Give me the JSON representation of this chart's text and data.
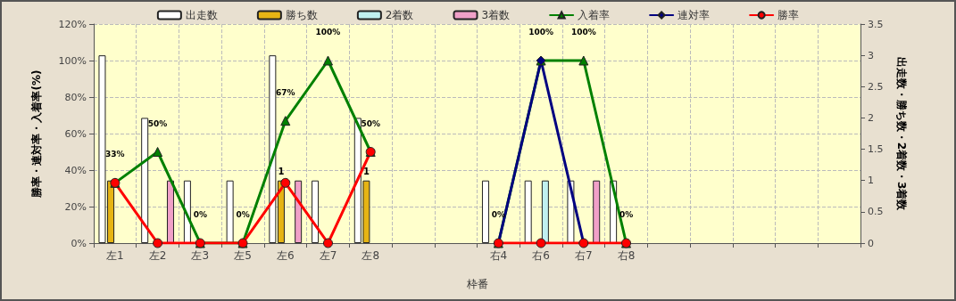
{
  "chart_data": {
    "type": "bar",
    "xlabel": "枠番",
    "ylabel": "勝率・連対率・入着率(%)",
    "y2label": "出走数・勝ち数・2着数・3着数",
    "categories": [
      "左1",
      "左2",
      "左3",
      "左5",
      "左6",
      "左7",
      "左8",
      null,
      null,
      "右4",
      "右6",
      "右7",
      "右8",
      null,
      null,
      null,
      null,
      null
    ],
    "series": [
      {
        "name": "出走数",
        "axis": "y2",
        "color": "#ffffff",
        "values": [
          3,
          2,
          1,
          1,
          3,
          1,
          2,
          null,
          null,
          1,
          1,
          1,
          1,
          null,
          null,
          null,
          null,
          null
        ]
      },
      {
        "name": "勝ち数",
        "axis": "y2",
        "color": "#e6b414",
        "values": [
          1,
          null,
          null,
          null,
          1,
          null,
          1,
          null,
          null,
          null,
          null,
          null,
          null,
          null,
          null,
          null,
          null,
          null
        ],
        "value_labels": [
          null,
          null,
          null,
          null,
          "1",
          null,
          "1",
          null,
          null,
          null,
          null,
          null,
          null,
          null,
          null,
          null,
          null,
          null
        ]
      },
      {
        "name": "2着数",
        "axis": "y2",
        "color": "#c0f0f0",
        "values": [
          null,
          null,
          null,
          null,
          null,
          null,
          null,
          null,
          null,
          null,
          1,
          null,
          null,
          null,
          null,
          null,
          null,
          null
        ]
      },
      {
        "name": "3着数",
        "axis": "y2",
        "color": "#f0a0c8",
        "values": [
          null,
          1,
          null,
          null,
          1,
          null,
          null,
          null,
          null,
          null,
          null,
          1,
          null,
          null,
          null,
          null,
          null,
          null
        ]
      },
      {
        "name": "入着率",
        "type": "line",
        "marker": "triangle",
        "color": "#008000",
        "values": [
          33,
          50,
          0,
          0,
          67,
          100,
          50,
          null,
          null,
          0,
          100,
          100,
          0,
          null,
          null,
          null,
          null,
          null
        ],
        "value_labels": [
          "33%",
          "50%",
          "0%",
          "0%",
          "67%",
          "100%",
          "50%",
          null,
          null,
          "0%",
          "100%",
          "100%",
          "0%",
          null,
          null,
          null,
          null,
          null
        ]
      },
      {
        "name": "連対率",
        "type": "line",
        "marker": "diamond",
        "color": "#000080",
        "values": [
          null,
          null,
          null,
          null,
          null,
          null,
          null,
          null,
          null,
          0,
          100,
          0,
          null,
          null,
          null,
          null,
          null,
          null
        ]
      },
      {
        "name": "勝率",
        "type": "line",
        "marker": "circle",
        "color": "#ff0000",
        "values": [
          33,
          0,
          0,
          0,
          33,
          0,
          50,
          null,
          null,
          0,
          0,
          0,
          0,
          null,
          null,
          null,
          null,
          null
        ]
      }
    ],
    "ylim": [
      0,
      120
    ],
    "yticks": [
      {
        "value": 0,
        "label": "0%"
      },
      {
        "value": 20,
        "label": "20%"
      },
      {
        "value": 40,
        "label": "40%"
      },
      {
        "value": 60,
        "label": "60%"
      },
      {
        "value": 80,
        "label": "80%"
      },
      {
        "value": 100,
        "label": "100%"
      },
      {
        "value": 120,
        "label": "120%"
      }
    ],
    "y2lim": [
      0,
      3.5
    ],
    "y2ticks": [
      0,
      0.5,
      1,
      1.5,
      2,
      2.5,
      3,
      3.5
    ],
    "grid": true,
    "legend": "top"
  }
}
